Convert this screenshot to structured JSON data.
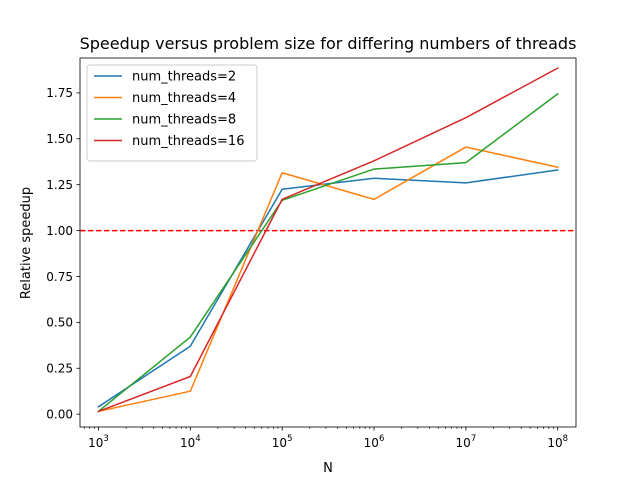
{
  "chart_data": {
    "type": "line",
    "title": "Speedup versus problem size for differing numbers of threads",
    "xlabel": "N",
    "ylabel": "Relative speedup",
    "x_scale": "log",
    "x": [
      1000,
      10000,
      100000,
      1000000,
      10000000,
      100000000
    ],
    "x_tick_labels": [
      {
        "base": "10",
        "exp": "3"
      },
      {
        "base": "10",
        "exp": "4"
      },
      {
        "base": "10",
        "exp": "5"
      },
      {
        "base": "10",
        "exp": "6"
      },
      {
        "base": "10",
        "exp": "7"
      },
      {
        "base": "10",
        "exp": "8"
      }
    ],
    "xlim": [
      630,
      158000000
    ],
    "ylim": [
      -0.07,
      1.94
    ],
    "y_ticks": [
      0.0,
      0.25,
      0.5,
      0.75,
      1.0,
      1.25,
      1.5,
      1.75
    ],
    "y_tick_labels": [
      "0.00",
      "0.25",
      "0.50",
      "0.75",
      "1.00",
      "1.25",
      "1.50",
      "1.75"
    ],
    "grid": false,
    "legend_position": "top-left",
    "reference_line": {
      "y": 1.0,
      "color": "#ff0000",
      "style": "dashed"
    },
    "series": [
      {
        "name": "num_threads=2",
        "color": "#1f77b4",
        "values": [
          0.04,
          0.37,
          1.225,
          1.285,
          1.26,
          1.33
        ]
      },
      {
        "name": "num_threads=4",
        "color": "#ff7f0e",
        "values": [
          0.015,
          0.125,
          1.315,
          1.17,
          1.455,
          1.345
        ]
      },
      {
        "name": "num_threads=8",
        "color": "#2ca02c",
        "values": [
          0.015,
          0.42,
          1.165,
          1.335,
          1.37,
          1.745
        ]
      },
      {
        "name": "num_threads=16",
        "color": "#d62728",
        "values": [
          0.015,
          0.205,
          1.17,
          1.38,
          1.615,
          1.885
        ]
      }
    ]
  }
}
